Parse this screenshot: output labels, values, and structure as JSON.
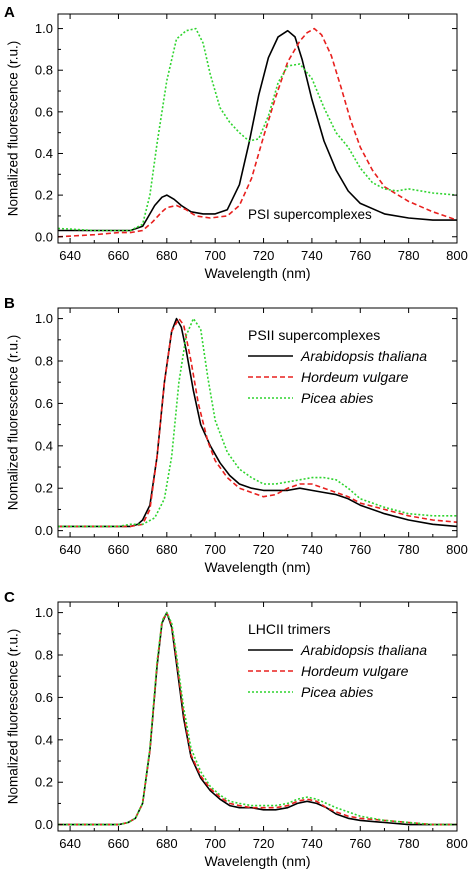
{
  "chart_data": [
    {
      "type": "line",
      "panel_label": "A",
      "annotation": "PSI supercomplexes",
      "xlabel": "Wavelength (nm)",
      "ylabel": "Nomalized fluorescence (r.u.)",
      "xlim": [
        635,
        800
      ],
      "ylim": [
        -0.03,
        1.07
      ],
      "xticks": [
        "640",
        "660",
        "680",
        "700",
        "720",
        "740",
        "760",
        "780",
        "800"
      ],
      "yticks": [
        "0.0",
        "0.2",
        "0.4",
        "0.6",
        "0.8",
        "1.0"
      ],
      "legend": false,
      "series": [
        {
          "color": "#000000",
          "dash": "solid",
          "x": [
            635,
            650,
            660,
            665,
            670,
            672,
            675,
            678,
            680,
            683,
            686,
            690,
            695,
            700,
            705,
            710,
            714,
            718,
            722,
            726,
            730,
            733,
            736,
            740,
            745,
            750,
            755,
            760,
            770,
            780,
            790,
            800
          ],
          "y": [
            0.03,
            0.03,
            0.03,
            0.03,
            0.05,
            0.09,
            0.15,
            0.19,
            0.2,
            0.18,
            0.15,
            0.12,
            0.11,
            0.11,
            0.13,
            0.25,
            0.45,
            0.68,
            0.86,
            0.96,
            0.99,
            0.96,
            0.85,
            0.66,
            0.46,
            0.32,
            0.22,
            0.16,
            0.11,
            0.09,
            0.08,
            0.08
          ]
        },
        {
          "color": "#e8201e",
          "dash": "dashed",
          "x": [
            635,
            650,
            660,
            665,
            670,
            674,
            678,
            680,
            684,
            688,
            692,
            698,
            705,
            710,
            715,
            720,
            725,
            730,
            735,
            738,
            741,
            744,
            748,
            752,
            756,
            760,
            765,
            770,
            780,
            790,
            800
          ],
          "y": [
            0.0,
            0.01,
            0.02,
            0.02,
            0.03,
            0.07,
            0.12,
            0.14,
            0.15,
            0.13,
            0.1,
            0.09,
            0.1,
            0.15,
            0.28,
            0.48,
            0.67,
            0.84,
            0.94,
            0.98,
            1.0,
            0.97,
            0.87,
            0.72,
            0.56,
            0.43,
            0.32,
            0.24,
            0.17,
            0.12,
            0.08
          ]
        },
        {
          "color": "#2fd42f",
          "dash": "dotted",
          "x": [
            635,
            650,
            660,
            665,
            670,
            673,
            676,
            680,
            684,
            688,
            692,
            695,
            698,
            702,
            706,
            710,
            714,
            718,
            722,
            726,
            730,
            735,
            740,
            745,
            750,
            755,
            760,
            765,
            770,
            775,
            780,
            790,
            800
          ],
          "y": [
            0.04,
            0.03,
            0.03,
            0.03,
            0.06,
            0.2,
            0.45,
            0.75,
            0.95,
            0.99,
            1.0,
            0.93,
            0.78,
            0.62,
            0.55,
            0.5,
            0.46,
            0.47,
            0.58,
            0.74,
            0.82,
            0.83,
            0.76,
            0.62,
            0.5,
            0.43,
            0.33,
            0.26,
            0.23,
            0.22,
            0.23,
            0.21,
            0.2
          ]
        }
      ]
    },
    {
      "type": "line",
      "panel_label": "B",
      "xlabel": "Wavelength (nm)",
      "ylabel": "Nomalized fluorescence (r.u.)",
      "xlim": [
        635,
        800
      ],
      "ylim": [
        -0.03,
        1.05
      ],
      "xticks": [
        "640",
        "660",
        "680",
        "700",
        "720",
        "740",
        "760",
        "780",
        "800"
      ],
      "yticks": [
        "0.0",
        "0.2",
        "0.4",
        "0.6",
        "0.8",
        "1.0"
      ],
      "legend": true,
      "legend_position": "top-right",
      "legend_title": "PSII supercomplexes",
      "series": [
        {
          "name": "Arabidopsis thaliana",
          "color": "#000000",
          "dash": "solid",
          "x": [
            635,
            650,
            660,
            665,
            668,
            670,
            673,
            676,
            679,
            682,
            684,
            686,
            688,
            691,
            694,
            698,
            702,
            706,
            710,
            715,
            720,
            725,
            730,
            735,
            740,
            745,
            750,
            755,
            760,
            770,
            780,
            790,
            800
          ],
          "y": [
            0.02,
            0.02,
            0.02,
            0.02,
            0.03,
            0.05,
            0.12,
            0.35,
            0.7,
            0.94,
            1.0,
            0.96,
            0.85,
            0.66,
            0.5,
            0.4,
            0.32,
            0.26,
            0.22,
            0.2,
            0.19,
            0.19,
            0.19,
            0.2,
            0.19,
            0.18,
            0.17,
            0.15,
            0.12,
            0.08,
            0.05,
            0.03,
            0.02
          ]
        },
        {
          "name": "Hordeum vulgare",
          "color": "#e8201e",
          "dash": "dashed",
          "x": [
            635,
            650,
            660,
            665,
            670,
            673,
            676,
            679,
            682,
            685,
            687,
            690,
            693,
            697,
            700,
            705,
            710,
            715,
            720,
            725,
            730,
            735,
            740,
            745,
            750,
            755,
            760,
            770,
            780,
            790,
            800
          ],
          "y": [
            0.02,
            0.02,
            0.02,
            0.02,
            0.03,
            0.1,
            0.35,
            0.7,
            0.94,
            1.0,
            0.97,
            0.8,
            0.6,
            0.42,
            0.33,
            0.25,
            0.2,
            0.18,
            0.16,
            0.17,
            0.2,
            0.22,
            0.22,
            0.2,
            0.18,
            0.16,
            0.13,
            0.1,
            0.07,
            0.05,
            0.04
          ]
        },
        {
          "name": "Picea abies",
          "color": "#2fd42f",
          "dash": "dotted",
          "x": [
            635,
            650,
            660,
            665,
            670,
            675,
            679,
            682,
            685,
            688,
            691,
            694,
            697,
            700,
            705,
            710,
            715,
            720,
            725,
            730,
            735,
            740,
            745,
            750,
            755,
            760,
            770,
            780,
            790,
            800
          ],
          "y": [
            0.02,
            0.02,
            0.02,
            0.03,
            0.03,
            0.06,
            0.15,
            0.35,
            0.7,
            0.92,
            1.0,
            0.95,
            0.72,
            0.52,
            0.37,
            0.29,
            0.25,
            0.22,
            0.22,
            0.23,
            0.24,
            0.25,
            0.25,
            0.24,
            0.2,
            0.15,
            0.11,
            0.08,
            0.07,
            0.07
          ]
        }
      ]
    },
    {
      "type": "line",
      "panel_label": "C",
      "xlabel": "Wavelength (nm)",
      "ylabel": "Nomalized fluorescence (r.u.)",
      "xlim": [
        635,
        800
      ],
      "ylim": [
        -0.03,
        1.05
      ],
      "xticks": [
        "640",
        "660",
        "680",
        "700",
        "720",
        "740",
        "760",
        "780",
        "800"
      ],
      "yticks": [
        "0.0",
        "0.2",
        "0.4",
        "0.6",
        "0.8",
        "1.0"
      ],
      "legend": true,
      "legend_position": "top-right",
      "legend_title": "LHCII trimers",
      "series": [
        {
          "name": "Arabidopsis thaliana",
          "color": "#000000",
          "dash": "solid",
          "x": [
            635,
            650,
            660,
            664,
            667,
            670,
            673,
            676,
            678,
            680,
            682,
            684,
            687,
            690,
            694,
            698,
            702,
            706,
            710,
            715,
            720,
            725,
            730,
            734,
            738,
            742,
            746,
            750,
            755,
            760,
            770,
            780,
            790,
            800
          ],
          "y": [
            0.0,
            0.0,
            0.0,
            0.01,
            0.03,
            0.1,
            0.35,
            0.75,
            0.95,
            1.0,
            0.93,
            0.76,
            0.5,
            0.32,
            0.22,
            0.16,
            0.12,
            0.09,
            0.08,
            0.08,
            0.07,
            0.07,
            0.08,
            0.1,
            0.11,
            0.1,
            0.08,
            0.05,
            0.03,
            0.02,
            0.01,
            0.0,
            0.0,
            0.0
          ]
        },
        {
          "name": "Hordeum vulgare",
          "color": "#e8201e",
          "dash": "dashed",
          "x": [
            635,
            650,
            660,
            664,
            667,
            670,
            673,
            676,
            678,
            680,
            682,
            684,
            687,
            690,
            694,
            698,
            702,
            706,
            710,
            715,
            720,
            725,
            730,
            734,
            738,
            742,
            746,
            750,
            755,
            760,
            770,
            780,
            790,
            800
          ],
          "y": [
            0.0,
            0.0,
            0.0,
            0.01,
            0.03,
            0.1,
            0.35,
            0.76,
            0.96,
            1.0,
            0.94,
            0.78,
            0.52,
            0.33,
            0.23,
            0.17,
            0.13,
            0.1,
            0.09,
            0.08,
            0.08,
            0.08,
            0.09,
            0.11,
            0.12,
            0.11,
            0.08,
            0.06,
            0.04,
            0.03,
            0.02,
            0.01,
            0.0,
            0.0
          ]
        },
        {
          "name": "Picea abies",
          "color": "#2fd42f",
          "dash": "dotted",
          "x": [
            635,
            650,
            660,
            664,
            667,
            670,
            673,
            676,
            678,
            680,
            682,
            684,
            687,
            690,
            694,
            698,
            702,
            706,
            710,
            715,
            720,
            725,
            730,
            734,
            738,
            742,
            746,
            750,
            755,
            760,
            770,
            780,
            790,
            800
          ],
          "y": [
            0.0,
            0.0,
            0.0,
            0.01,
            0.03,
            0.1,
            0.36,
            0.77,
            0.96,
            1.0,
            0.95,
            0.8,
            0.55,
            0.36,
            0.25,
            0.18,
            0.14,
            0.11,
            0.1,
            0.09,
            0.09,
            0.09,
            0.1,
            0.12,
            0.13,
            0.12,
            0.1,
            0.08,
            0.06,
            0.04,
            0.02,
            0.01,
            0.0,
            0.0
          ]
        }
      ]
    }
  ]
}
